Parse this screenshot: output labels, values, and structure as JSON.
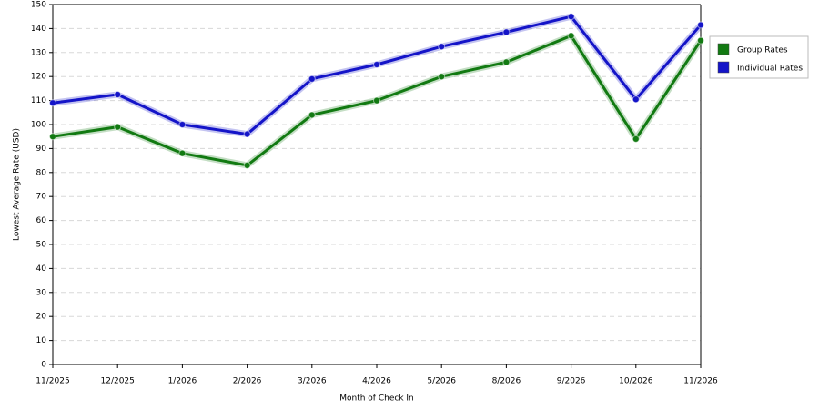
{
  "chart_data": {
    "type": "line",
    "x_label": "Month of Check In",
    "y_label": "Lowest Average Rate (USD)",
    "categories": [
      "11/2025",
      "12/2025",
      "1/2026",
      "2/2026",
      "3/2026",
      "4/2026",
      "5/2026",
      "8/2026",
      "9/2026",
      "10/2026",
      "11/2026"
    ],
    "series": [
      {
        "name": "Group Rates",
        "color": "#127a12",
        "values": [
          95,
          99,
          88,
          83,
          104,
          110,
          120,
          126,
          137,
          94,
          135
        ]
      },
      {
        "name": "Individual Rates",
        "color": "#1414c8",
        "values": [
          109,
          112.5,
          100,
          96,
          119,
          125,
          132.5,
          138.5,
          145,
          110.5,
          141.5
        ]
      }
    ],
    "ylim": [
      0,
      150
    ],
    "yticks": [
      0,
      10,
      20,
      30,
      40,
      50,
      60,
      70,
      80,
      90,
      100,
      110,
      120,
      130,
      140,
      150
    ],
    "grid": true,
    "legend": "right"
  }
}
